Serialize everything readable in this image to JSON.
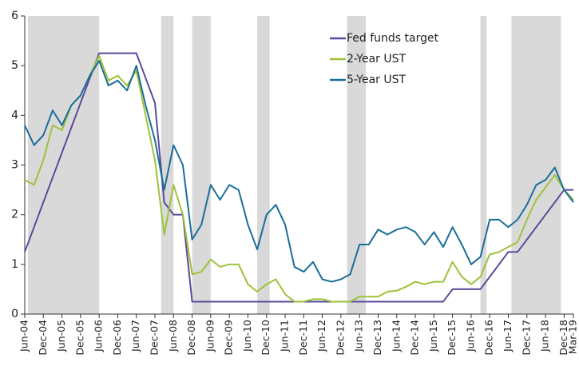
{
  "chart_data": {
    "type": "line",
    "x": [
      "2004-06",
      "2004-09",
      "2004-12",
      "2005-03",
      "2005-06",
      "2005-09",
      "2005-12",
      "2006-03",
      "2006-06",
      "2006-09",
      "2006-12",
      "2007-03",
      "2007-06",
      "2007-09",
      "2007-12",
      "2008-03",
      "2008-06",
      "2008-09",
      "2008-12",
      "2009-03",
      "2009-06",
      "2009-09",
      "2009-12",
      "2010-03",
      "2010-06",
      "2010-09",
      "2010-12",
      "2011-03",
      "2011-06",
      "2011-09",
      "2011-12",
      "2012-03",
      "2012-06",
      "2012-09",
      "2012-12",
      "2013-03",
      "2013-06",
      "2013-09",
      "2013-12",
      "2014-03",
      "2014-06",
      "2014-09",
      "2014-12",
      "2015-03",
      "2015-06",
      "2015-09",
      "2015-12",
      "2016-03",
      "2016-06",
      "2016-09",
      "2016-12",
      "2017-03",
      "2017-06",
      "2017-09",
      "2017-12",
      "2018-03",
      "2018-06",
      "2018-09",
      "2018-12",
      "2019-03"
    ],
    "series": [
      {
        "name": "Fed funds target",
        "color": "#5b4a9b",
        "values": [
          1.25,
          1.75,
          2.25,
          2.75,
          3.25,
          3.75,
          4.25,
          4.75,
          5.25,
          5.25,
          5.25,
          5.25,
          5.25,
          4.75,
          4.25,
          2.25,
          2.0,
          2.0,
          0.25,
          0.25,
          0.25,
          0.25,
          0.25,
          0.25,
          0.25,
          0.25,
          0.25,
          0.25,
          0.25,
          0.25,
          0.25,
          0.25,
          0.25,
          0.25,
          0.25,
          0.25,
          0.25,
          0.25,
          0.25,
          0.25,
          0.25,
          0.25,
          0.25,
          0.25,
          0.25,
          0.25,
          0.5,
          0.5,
          0.5,
          0.5,
          0.75,
          1.0,
          1.25,
          1.25,
          1.5,
          1.75,
          2.0,
          2.25,
          2.5,
          2.5
        ]
      },
      {
        "name": "2-Year UST",
        "color": "#9dc23b",
        "values": [
          2.7,
          2.6,
          3.1,
          3.8,
          3.7,
          4.2,
          4.4,
          4.8,
          5.2,
          4.7,
          4.8,
          4.6,
          4.9,
          4.0,
          3.1,
          1.6,
          2.6,
          2.0,
          0.8,
          0.85,
          1.1,
          0.95,
          1.0,
          1.0,
          0.6,
          0.45,
          0.6,
          0.7,
          0.4,
          0.25,
          0.25,
          0.3,
          0.3,
          0.25,
          0.25,
          0.25,
          0.35,
          0.35,
          0.35,
          0.45,
          0.47,
          0.55,
          0.65,
          0.6,
          0.65,
          0.65,
          1.05,
          0.75,
          0.6,
          0.75,
          1.2,
          1.25,
          1.35,
          1.45,
          1.9,
          2.3,
          2.55,
          2.8,
          2.5,
          2.3
        ]
      },
      {
        "name": "5-Year UST",
        "color": "#1a6e99",
        "values": [
          3.8,
          3.4,
          3.6,
          4.1,
          3.8,
          4.2,
          4.4,
          4.8,
          5.1,
          4.6,
          4.7,
          4.5,
          5.0,
          4.2,
          3.5,
          2.5,
          3.4,
          3.0,
          1.5,
          1.8,
          2.6,
          2.3,
          2.6,
          2.5,
          1.8,
          1.3,
          2.0,
          2.2,
          1.8,
          0.95,
          0.85,
          1.05,
          0.7,
          0.65,
          0.7,
          0.8,
          1.4,
          1.4,
          1.7,
          1.6,
          1.7,
          1.75,
          1.65,
          1.4,
          1.65,
          1.35,
          1.75,
          1.4,
          1.0,
          1.15,
          1.9,
          1.9,
          1.75,
          1.9,
          2.2,
          2.6,
          2.7,
          2.95,
          2.5,
          2.25
        ]
      }
    ],
    "shaded_ranges": [
      [
        "2004-07",
        "2006-06"
      ],
      [
        "2008-02",
        "2008-06"
      ],
      [
        "2008-12",
        "2009-06"
      ],
      [
        "2010-09",
        "2011-01"
      ],
      [
        "2013-02",
        "2013-08"
      ],
      [
        "2016-09",
        "2016-11"
      ],
      [
        "2017-07",
        "2018-11"
      ]
    ],
    "shade_color": "#d9d9d9",
    "xlim": [
      "2004-06",
      "2019-03"
    ],
    "xticks": [
      {
        "value": "2004-06",
        "label": "Jun-04"
      },
      {
        "value": "2004-12",
        "label": "Dec-04"
      },
      {
        "value": "2005-06",
        "label": "Jun-05"
      },
      {
        "value": "2005-12",
        "label": "Dec-05"
      },
      {
        "value": "2006-06",
        "label": "Jun-06"
      },
      {
        "value": "2006-12",
        "label": "Dec-06"
      },
      {
        "value": "2007-06",
        "label": "Jun-07"
      },
      {
        "value": "2007-12",
        "label": "Dec-07"
      },
      {
        "value": "2008-06",
        "label": "Jun-08"
      },
      {
        "value": "2008-12",
        "label": "Dec-08"
      },
      {
        "value": "2009-06",
        "label": "Jun-09"
      },
      {
        "value": "2009-12",
        "label": "Dec-09"
      },
      {
        "value": "2010-06",
        "label": "Jun-10"
      },
      {
        "value": "2010-12",
        "label": "Dec-10"
      },
      {
        "value": "2011-06",
        "label": "Jun-11"
      },
      {
        "value": "2011-12",
        "label": "Dec-11"
      },
      {
        "value": "2012-06",
        "label": "Jun-12"
      },
      {
        "value": "2012-12",
        "label": "Dec-12"
      },
      {
        "value": "2013-06",
        "label": "Jun-13"
      },
      {
        "value": "2013-12",
        "label": "Dec-13"
      },
      {
        "value": "2014-06",
        "label": "Jun-14"
      },
      {
        "value": "2014-12",
        "label": "Dec-14"
      },
      {
        "value": "2015-06",
        "label": "Jun-15"
      },
      {
        "value": "2015-12",
        "label": "Dec-15"
      },
      {
        "value": "2016-06",
        "label": "Jun-16"
      },
      {
        "value": "2016-12",
        "label": "Dec-16"
      },
      {
        "value": "2017-06",
        "label": "Jun-17"
      },
      {
        "value": "2017-12",
        "label": "Dec-17"
      },
      {
        "value": "2018-06",
        "label": "Jun-18"
      },
      {
        "value": "2018-12",
        "label": "Dec-18"
      },
      {
        "value": "2019-03",
        "label": "Mar-19"
      }
    ],
    "ylim": [
      0,
      6
    ],
    "yticks": [
      0,
      1,
      2,
      3,
      4,
      5,
      6
    ],
    "grid": false,
    "legend": "top"
  }
}
